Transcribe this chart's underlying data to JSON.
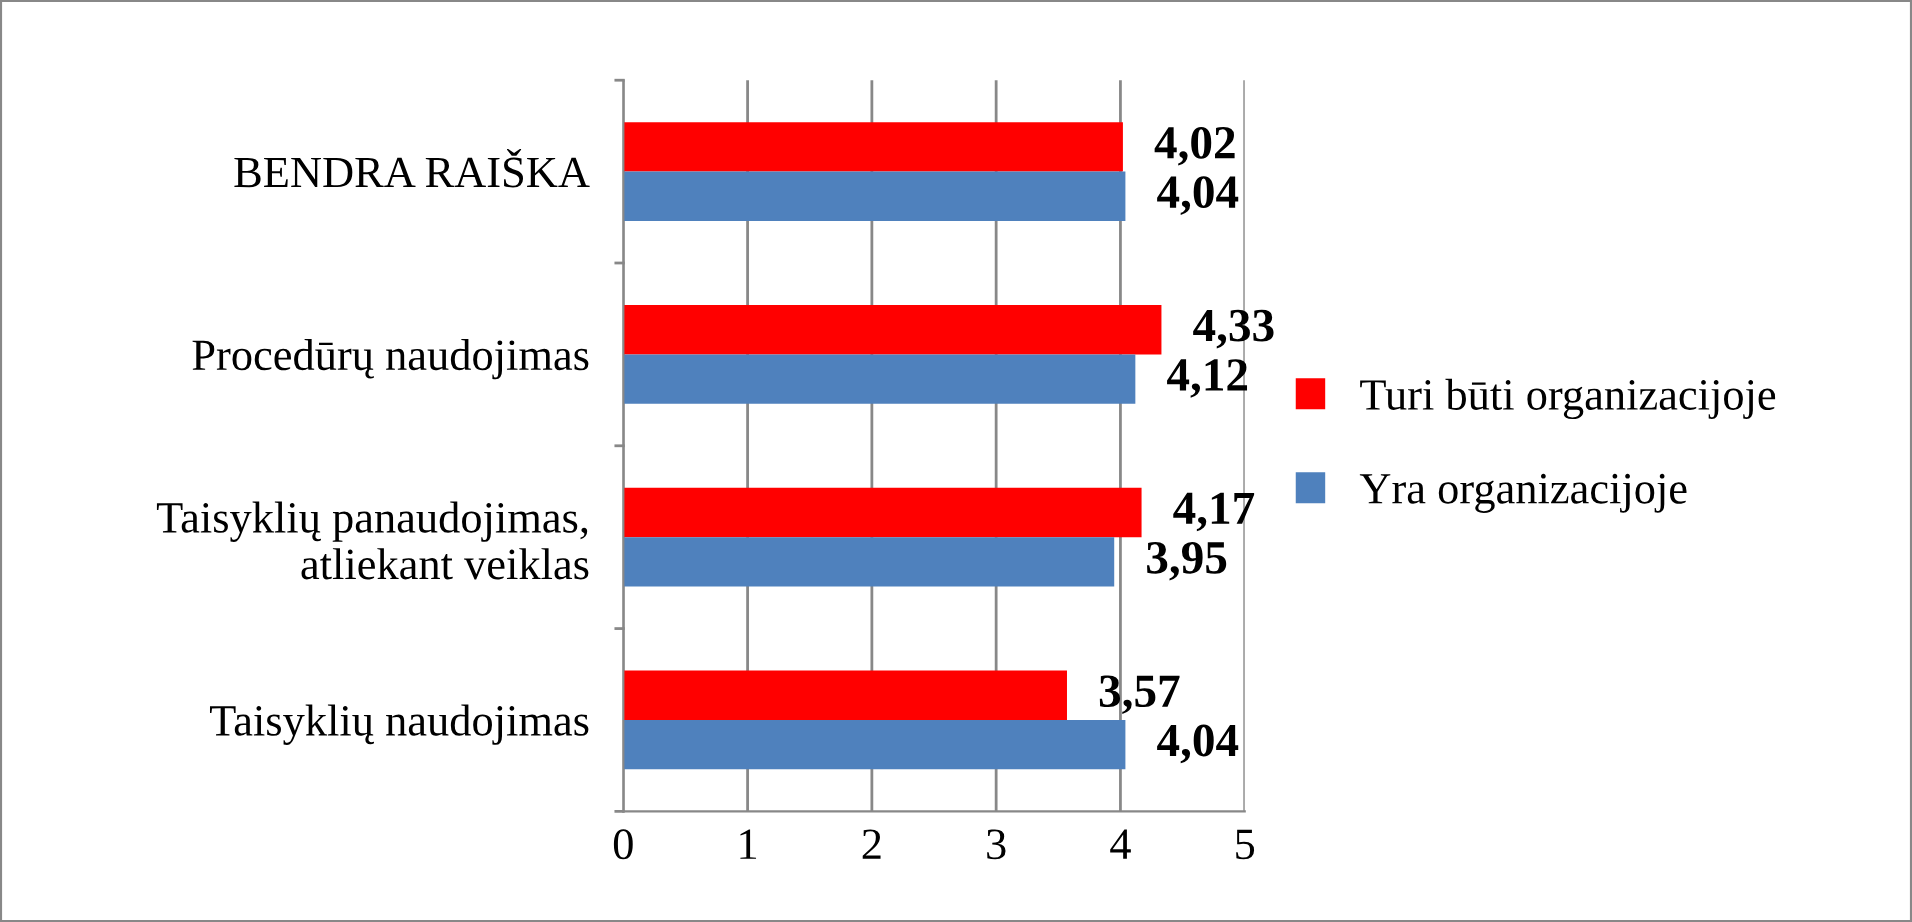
{
  "chart_data": {
    "type": "bar",
    "orientation": "horizontal",
    "categories": [
      "BENDRA RAIŠKA",
      "Procedūrų naudojimas",
      "Taisyklių panaudojimas,\natliekant veiklas",
      "Taisyklių naudojimas"
    ],
    "series": [
      {
        "name": "Turi būti organizacijoje",
        "color": "#ff0000",
        "values": [
          4.02,
          4.33,
          4.17,
          3.57
        ],
        "value_labels": [
          "4,02",
          "4,33",
          "4,17",
          "3,57"
        ]
      },
      {
        "name": "Yra organizacijoje",
        "color": "#4f81bd",
        "values": [
          4.04,
          4.12,
          3.95,
          4.04
        ],
        "value_labels": [
          "4,04",
          "4,12",
          "3,95",
          "4,04"
        ]
      }
    ],
    "xlim": [
      0,
      5
    ],
    "xticks": [
      0,
      1,
      2,
      3,
      4,
      5
    ],
    "grid": "x",
    "legend": "right"
  }
}
